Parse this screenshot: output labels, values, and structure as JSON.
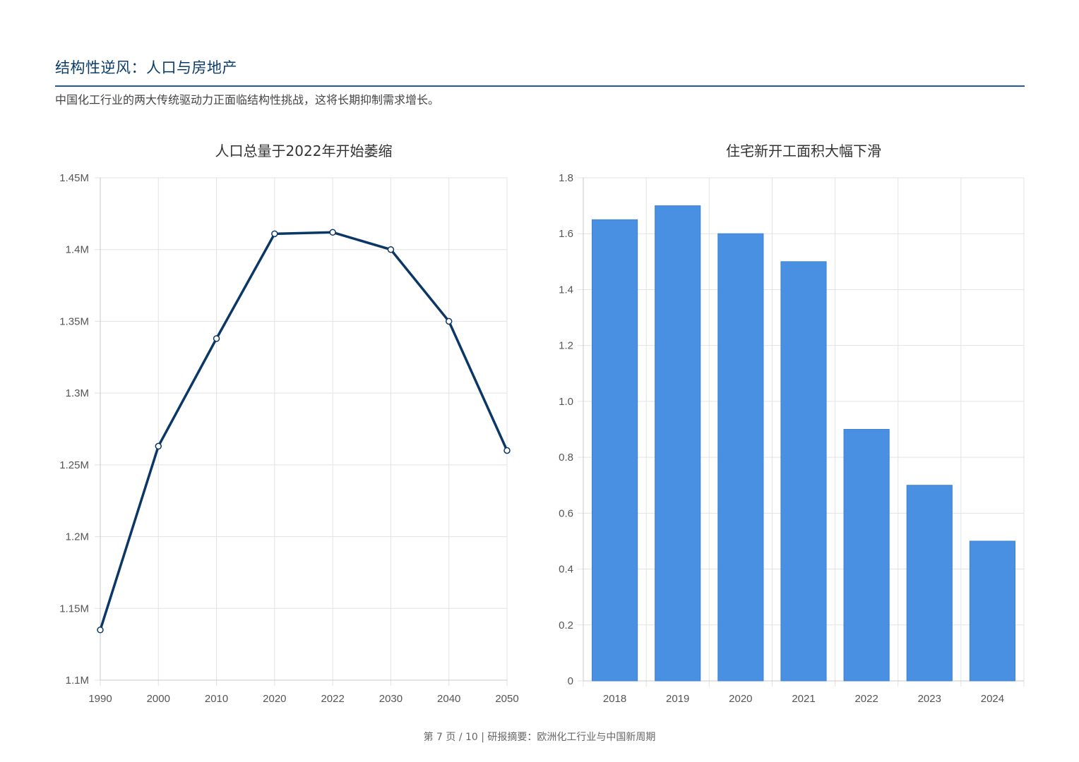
{
  "header": {
    "title": "结构性逆风：人口与房地产",
    "subtitle": "中国化工行业的两大传统驱动力正面临结构性挑战，这将长期抑制需求增长。"
  },
  "colors": {
    "accent": "#1f5c9a",
    "title": "#0b3d6b",
    "line_series": "#0b3766",
    "bar_series": "#4a90e2",
    "grid": "#e3e3e3"
  },
  "chart_data": [
    {
      "type": "line",
      "title": "人口总量于2022年开始萎缩",
      "x": [
        "1990",
        "2000",
        "2010",
        "2020",
        "2022",
        "2030",
        "2040",
        "2050"
      ],
      "series": [
        {
          "values": [
            1.135,
            1.263,
            1.338,
            1.411,
            1.412,
            1.4,
            1.35,
            1.26
          ]
        }
      ],
      "ylim": [
        1.1,
        1.45
      ],
      "y_ticks": [
        "1.45M",
        "1.4M",
        "1.35M",
        "1.3M",
        "1.25M",
        "1.2M",
        "1.15M",
        "1.1M"
      ],
      "y_tick_values": [
        1.45,
        1.4,
        1.35,
        1.3,
        1.25,
        1.2,
        1.15,
        1.1
      ],
      "grid": true,
      "legend": "none"
    },
    {
      "type": "bar",
      "title": "住宅新开工面积大幅下滑",
      "categories": [
        "2018",
        "2019",
        "2020",
        "2021",
        "2022",
        "2023",
        "2024"
      ],
      "values": [
        1.65,
        1.7,
        1.6,
        1.5,
        0.9,
        0.7,
        0.5
      ],
      "ylim": [
        0,
        1.8
      ],
      "y_ticks": [
        "1.8",
        "1.6",
        "1.4",
        "1.2",
        "1.0",
        "0.8",
        "0.6",
        "0.4",
        "0.2",
        "0"
      ],
      "y_tick_values": [
        1.8,
        1.6,
        1.4,
        1.2,
        1.0,
        0.8,
        0.6,
        0.4,
        0.2,
        0
      ],
      "grid": true,
      "legend": "none"
    }
  ],
  "footer": {
    "text": "第 7 页 / 10 | 研报摘要：欧洲化工行业与中国新周期"
  }
}
